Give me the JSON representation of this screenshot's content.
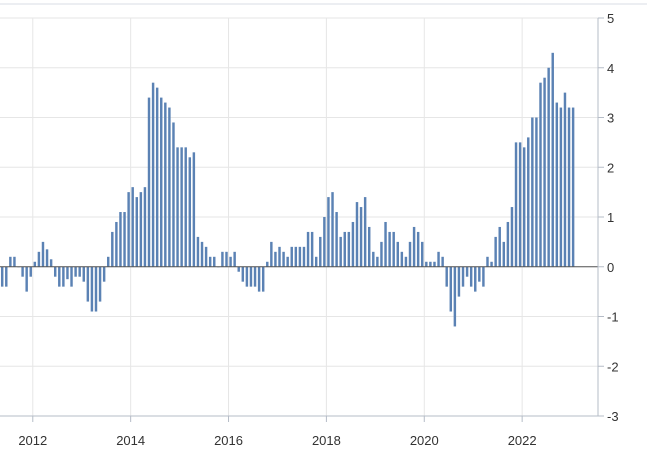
{
  "chart_data": {
    "type": "bar",
    "title": "",
    "xlabel": "",
    "ylabel": "",
    "ylim": [
      -3,
      5
    ],
    "yticks": [
      -3,
      -2,
      -1,
      0,
      1,
      2,
      3,
      4,
      5
    ],
    "xticks": [
      2012,
      2014,
      2016,
      2018,
      2020,
      2022
    ],
    "xlim": [
      2011.33,
      2023.55
    ],
    "grid": true,
    "colors": {
      "bar": "#5b82b4",
      "grid": "#e6e6e6",
      "axis": "#b5bcc7",
      "text": "#333333"
    },
    "series": [
      {
        "start_year": 2011,
        "start_month": 5,
        "frequency": "monthly",
        "values": [
          -0.4,
          -0.4,
          0.2,
          0.2,
          0,
          -0.2,
          -0.5,
          -0.2,
          0.1,
          0.3,
          0.5,
          0.35,
          0.15,
          -0.2,
          -0.4,
          -0.4,
          -0.25,
          -0.4,
          -0.2,
          -0.2,
          -0.3,
          -0.7,
          -0.9,
          -0.9,
          -0.7,
          -0.3,
          0.2,
          0.7,
          0.9,
          1.1,
          1.1,
          1.5,
          1.6,
          1.4,
          1.5,
          1.6,
          3.4,
          3.7,
          3.6,
          3.4,
          3.3,
          3.2,
          2.9,
          2.4,
          2.4,
          2.4,
          2.2,
          2.3,
          0.6,
          0.5,
          0.4,
          0.2,
          0.2,
          0,
          0.3,
          0.3,
          0.2,
          0.3,
          -0.1,
          -0.3,
          -0.4,
          -0.4,
          -0.4,
          -0.5,
          -0.5,
          0.1,
          0.5,
          0.3,
          0.4,
          0.3,
          0.2,
          0.4,
          0.4,
          0.4,
          0.4,
          0.7,
          0.7,
          0.2,
          0.6,
          1.0,
          1.4,
          1.5,
          1.1,
          0.6,
          0.7,
          0.7,
          0.9,
          1.3,
          1.2,
          1.4,
          0.8,
          0.3,
          0.2,
          0.5,
          0.9,
          0.7,
          0.7,
          0.5,
          0.3,
          0.2,
          0.5,
          0.8,
          0.7,
          0.5,
          0.1,
          0.1,
          0.1,
          0.3,
          0.2,
          -0.4,
          -0.9,
          -1.2,
          -0.6,
          -0.4,
          -0.2,
          -0.4,
          -0.5,
          -0.3,
          -0.4,
          0.2,
          0.1,
          0.6,
          0.8,
          0.5,
          0.9,
          1.2,
          2.5,
          2.5,
          2.4,
          2.6,
          3.0,
          3.0,
          3.7,
          3.8,
          4.0,
          4.3,
          3.3,
          3.2,
          3.5,
          3.2,
          3.2
        ]
      }
    ]
  }
}
